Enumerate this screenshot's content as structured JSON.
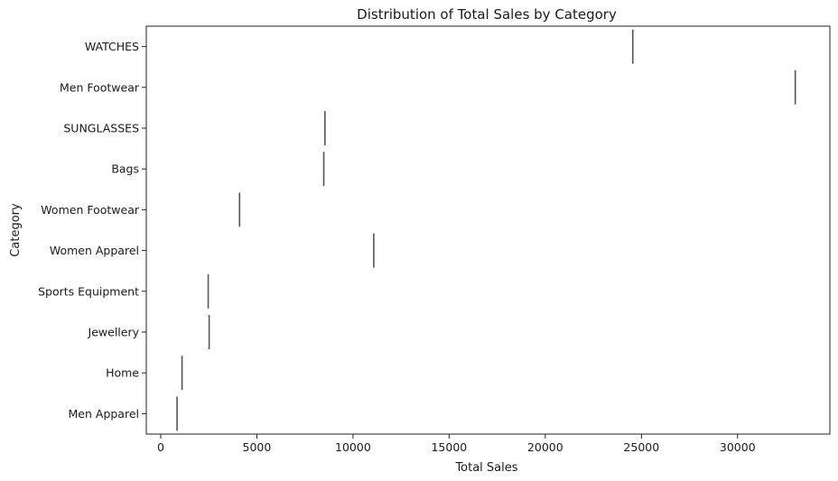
{
  "chart_data": {
    "type": "box",
    "orientation": "horizontal",
    "title": "Distribution of Total Sales by Category",
    "xlabel": "Total Sales",
    "ylabel": "Category",
    "categories": [
      "WATCHES",
      "Men Footwear",
      "SUNGLASSES",
      "Bags",
      "Women Footwear",
      "Women Apparel",
      "Sports Equipment",
      "Jewellery",
      "Home",
      "Men Apparel"
    ],
    "values": [
      24550,
      33000,
      8540,
      8480,
      4100,
      11080,
      2470,
      2520,
      1110,
      850
    ],
    "xlim": [
      -750,
      34800
    ],
    "xticks": [
      0,
      5000,
      10000,
      15000,
      20000,
      25000,
      30000
    ],
    "xtick_labels": [
      "0",
      "5000",
      "10000",
      "15000",
      "20000",
      "25000",
      "30000"
    ],
    "grid": false,
    "colors": {
      "mark": "#555555",
      "axis": "#222222",
      "text": "#1a1a1a"
    }
  }
}
